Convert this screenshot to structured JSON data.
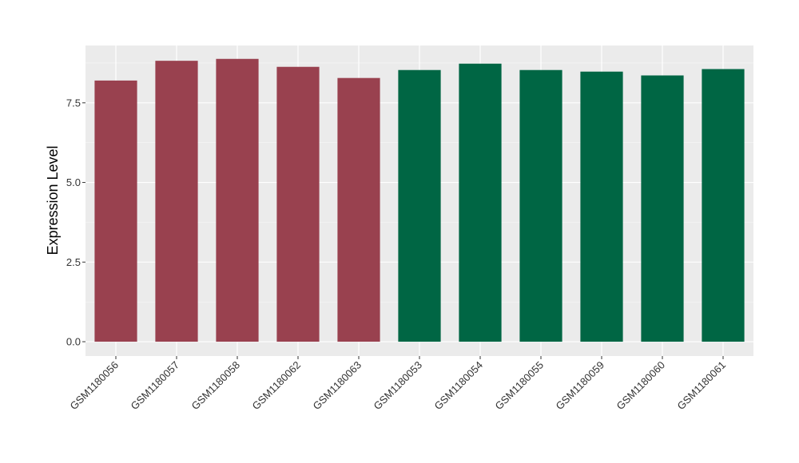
{
  "chart_data": {
    "type": "bar",
    "xlabel": "",
    "ylabel": "Expression Level",
    "ylim": [
      -0.45,
      9.3
    ],
    "yticks": [
      0.0,
      2.5,
      5.0,
      7.5
    ],
    "ytick_labels": [
      "0.0",
      "2.5",
      "5.0",
      "7.5"
    ],
    "grid": true,
    "legend": "none",
    "panel_background": "#ebebeb",
    "categories": [
      "GSM1180056",
      "GSM1180057",
      "GSM1180058",
      "GSM1180062",
      "GSM1180063",
      "GSM1180053",
      "GSM1180054",
      "GSM1180055",
      "GSM1180059",
      "GSM1180060",
      "GSM1180061"
    ],
    "values": [
      8.2,
      8.82,
      8.88,
      8.63,
      8.28,
      8.53,
      8.73,
      8.53,
      8.48,
      8.36,
      8.56
    ],
    "bar_colors": [
      "#99414f",
      "#99414f",
      "#99414f",
      "#99414f",
      "#99414f",
      "#006644",
      "#006644",
      "#006644",
      "#006644",
      "#006644",
      "#006644"
    ]
  }
}
